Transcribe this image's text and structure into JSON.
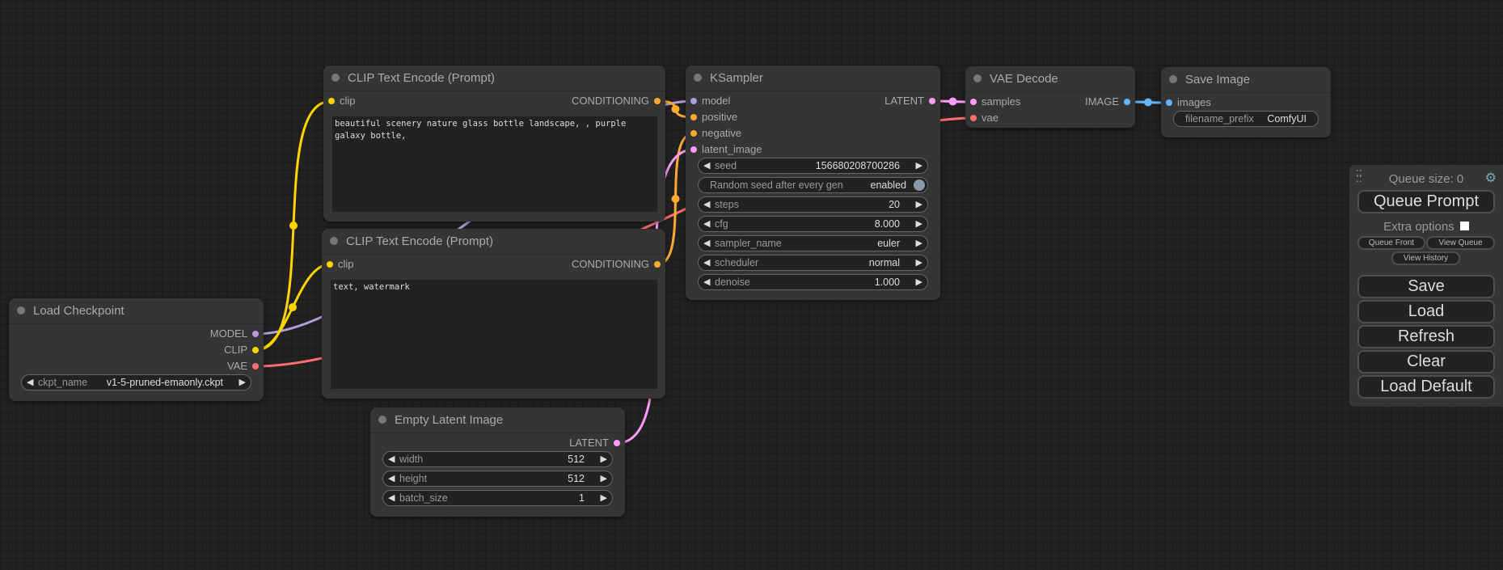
{
  "link_colors": {
    "MODEL": "#B39DDB",
    "CLIP": "#FFD500",
    "VAE": "#FF6E6E",
    "CONDITIONING": "#FFA931",
    "LATENT": "#FF9CF9",
    "IMAGE": "#64B5F6"
  },
  "nodes": [
    {
      "id": "load_checkpoint",
      "title": "Load Checkpoint",
      "inputs": [],
      "outputs": [
        {
          "name": "MODEL",
          "type": "MODEL"
        },
        {
          "name": "CLIP",
          "type": "CLIP"
        },
        {
          "name": "VAE",
          "type": "VAE"
        }
      ],
      "widgets": [
        {
          "kind": "combo",
          "label": "ckpt_name",
          "value": "v1-5-pruned-emaonly.ckpt"
        }
      ]
    },
    {
      "id": "clip_text_encode_positive",
      "title": "CLIP Text Encode (Prompt)",
      "inputs": [
        {
          "name": "clip",
          "type": "CLIP"
        }
      ],
      "outputs": [
        {
          "name": "CONDITIONING",
          "type": "CONDITIONING"
        }
      ],
      "text": "beautiful scenery nature glass bottle landscape, , purple galaxy bottle,",
      "widgets": []
    },
    {
      "id": "clip_text_encode_negative",
      "title": "CLIP Text Encode (Prompt)",
      "inputs": [
        {
          "name": "clip",
          "type": "CLIP"
        }
      ],
      "outputs": [
        {
          "name": "CONDITIONING",
          "type": "CONDITIONING"
        }
      ],
      "text": "text, watermark",
      "widgets": []
    },
    {
      "id": "empty_latent_image",
      "title": "Empty Latent Image",
      "inputs": [],
      "outputs": [
        {
          "name": "LATENT",
          "type": "LATENT"
        }
      ],
      "widgets": [
        {
          "kind": "number",
          "label": "width",
          "value": "512"
        },
        {
          "kind": "number",
          "label": "height",
          "value": "512"
        },
        {
          "kind": "number",
          "label": "batch_size",
          "value": "1"
        }
      ]
    },
    {
      "id": "ksampler",
      "title": "KSampler",
      "inputs": [
        {
          "name": "model",
          "type": "MODEL"
        },
        {
          "name": "positive",
          "type": "CONDITIONING"
        },
        {
          "name": "negative",
          "type": "CONDITIONING"
        },
        {
          "name": "latent_image",
          "type": "LATENT"
        }
      ],
      "outputs": [
        {
          "name": "LATENT",
          "type": "LATENT"
        }
      ],
      "widgets": [
        {
          "kind": "number",
          "label": "seed",
          "value": "156680208700286"
        },
        {
          "kind": "toggle",
          "label": "Random seed after every gen",
          "value": "enabled"
        },
        {
          "kind": "number",
          "label": "steps",
          "value": "20"
        },
        {
          "kind": "number",
          "label": "cfg",
          "value": "8.000"
        },
        {
          "kind": "combo",
          "label": "sampler_name",
          "value": "euler"
        },
        {
          "kind": "combo",
          "label": "scheduler",
          "value": "normal"
        },
        {
          "kind": "number",
          "label": "denoise",
          "value": "1.000"
        }
      ]
    },
    {
      "id": "vae_decode",
      "title": "VAE Decode",
      "inputs": [
        {
          "name": "samples",
          "type": "LATENT"
        },
        {
          "name": "vae",
          "type": "VAE"
        }
      ],
      "outputs": [
        {
          "name": "IMAGE",
          "type": "IMAGE"
        }
      ],
      "widgets": []
    },
    {
      "id": "save_image",
      "title": "Save Image",
      "inputs": [
        {
          "name": "images",
          "type": "IMAGE"
        }
      ],
      "outputs": [],
      "widgets": [
        {
          "kind": "text",
          "label": "filename_prefix",
          "value": "ComfyUI"
        }
      ]
    }
  ],
  "links": [
    {
      "from": "load_checkpoint",
      "out": 0,
      "to": "ksampler",
      "in": 0,
      "type": "MODEL"
    },
    {
      "from": "load_checkpoint",
      "out": 1,
      "to": "clip_text_encode_positive",
      "in": 0,
      "type": "CLIP"
    },
    {
      "from": "load_checkpoint",
      "out": 1,
      "to": "clip_text_encode_negative",
      "in": 0,
      "type": "CLIP"
    },
    {
      "from": "load_checkpoint",
      "out": 2,
      "to": "vae_decode",
      "in": 1,
      "type": "VAE"
    },
    {
      "from": "clip_text_encode_positive",
      "out": 0,
      "to": "ksampler",
      "in": 1,
      "type": "CONDITIONING"
    },
    {
      "from": "clip_text_encode_negative",
      "out": 0,
      "to": "ksampler",
      "in": 2,
      "type": "CONDITIONING"
    },
    {
      "from": "empty_latent_image",
      "out": 0,
      "to": "ksampler",
      "in": 3,
      "type": "LATENT"
    },
    {
      "from": "ksampler",
      "out": 0,
      "to": "vae_decode",
      "in": 0,
      "type": "LATENT"
    },
    {
      "from": "vae_decode",
      "out": 0,
      "to": "save_image",
      "in": 0,
      "type": "IMAGE"
    }
  ],
  "panel": {
    "queue_size": "Queue size: 0",
    "queue_prompt": "Queue Prompt",
    "extra_options": "Extra options",
    "queue_front": "Queue Front",
    "view_queue": "View Queue",
    "view_history": "View History",
    "save": "Save",
    "load": "Load",
    "refresh": "Refresh",
    "clear": "Clear",
    "load_default": "Load Default",
    "drag_icon": "drag-handle-icon",
    "settings_icon": "gear-icon"
  }
}
